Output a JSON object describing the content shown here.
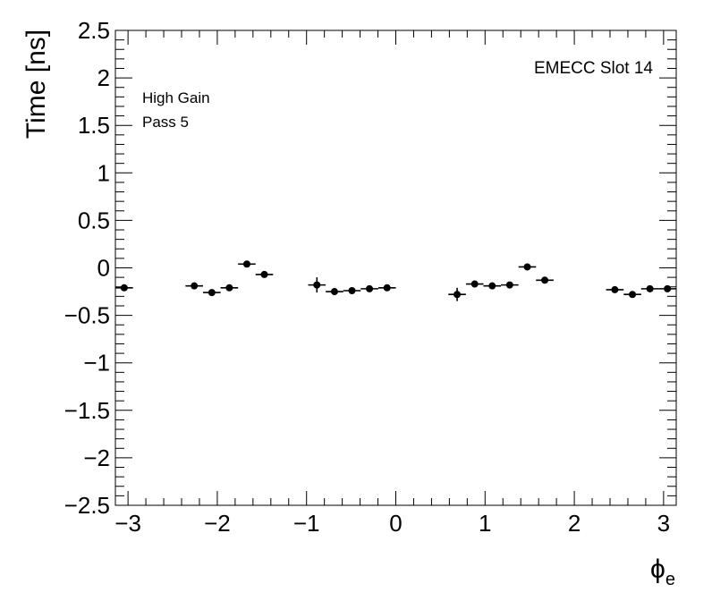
{
  "chart_data": {
    "type": "scatter",
    "title": "",
    "xlabel": "ϕ",
    "xlabel_subscript": "e",
    "ylabel": "Time [ns]",
    "xlim": [
      -3.1416,
      3.1416
    ],
    "ylim": [
      -2.5,
      2.5
    ],
    "x_ticks": [
      -3,
      -2,
      -1,
      0,
      1,
      2,
      3
    ],
    "x_tick_labels": [
      "−3",
      "−2",
      "−1",
      "0",
      "1",
      "2",
      "3"
    ],
    "y_ticks": [
      -2.5,
      -2,
      -1.5,
      -1,
      -0.5,
      0,
      0.5,
      1,
      1.5,
      2,
      2.5
    ],
    "y_tick_labels": [
      "−2.5",
      "−2",
      "−1.5",
      "−1",
      "−0.5",
      "0",
      "0.5",
      "1",
      "1.5",
      "2",
      "2.5"
    ],
    "grid": false,
    "legend": "none",
    "marker_color": "#000000",
    "annotations": {
      "gain": "High Gain",
      "pass": "Pass 5",
      "slot": "EMECC Slot 14"
    },
    "series": [
      {
        "x_halfwidth": 0.0982,
        "points": [
          {
            "x": -3.043,
            "y": -0.21,
            "yerr": 0.03
          },
          {
            "x": -2.258,
            "y": -0.19,
            "yerr": 0.02
          },
          {
            "x": -2.061,
            "y": -0.26,
            "yerr": 0.03
          },
          {
            "x": -1.865,
            "y": -0.21,
            "yerr": 0.02
          },
          {
            "x": -1.669,
            "y": 0.04,
            "yerr": 0.02
          },
          {
            "x": -1.473,
            "y": -0.07,
            "yerr": 0.02
          },
          {
            "x": -0.884,
            "y": -0.18,
            "yerr": 0.08
          },
          {
            "x": -0.687,
            "y": -0.25,
            "yerr": 0.02
          },
          {
            "x": -0.491,
            "y": -0.24,
            "yerr": 0.02
          },
          {
            "x": -0.295,
            "y": -0.22,
            "yerr": 0.02
          },
          {
            "x": -0.098,
            "y": -0.21,
            "yerr": 0.02
          },
          {
            "x": 0.687,
            "y": -0.28,
            "yerr": 0.07
          },
          {
            "x": 0.884,
            "y": -0.17,
            "yerr": 0.02
          },
          {
            "x": 1.08,
            "y": -0.19,
            "yerr": 0.03
          },
          {
            "x": 1.276,
            "y": -0.18,
            "yerr": 0.02
          },
          {
            "x": 1.473,
            "y": 0.01,
            "yerr": 0.02
          },
          {
            "x": 1.669,
            "y": -0.13,
            "yerr": 0.02
          },
          {
            "x": 2.454,
            "y": -0.23,
            "yerr": 0.02
          },
          {
            "x": 2.651,
            "y": -0.28,
            "yerr": 0.02
          },
          {
            "x": 2.847,
            "y": -0.22,
            "yerr": 0.02
          },
          {
            "x": 3.043,
            "y": -0.22,
            "yerr": 0.02
          }
        ]
      }
    ]
  }
}
